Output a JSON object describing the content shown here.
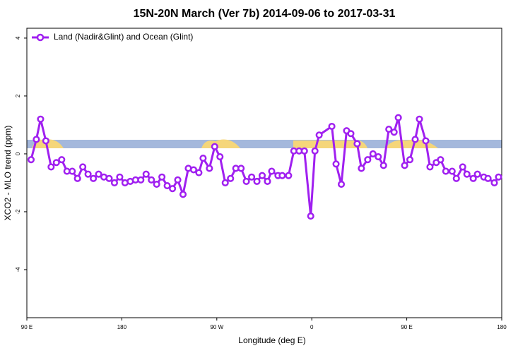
{
  "chart_data": {
    "type": "line",
    "title": "15N-20N March (Ver 7b)   2014-09-06 to 2017-03-31",
    "x_label": "Longitude (deg E)",
    "y_label": "XCO2 - MLO trend (ppm)",
    "x": [
      94,
      99,
      103,
      108,
      113,
      118,
      123,
      128,
      133,
      138,
      143,
      148,
      153,
      158,
      163,
      168,
      173,
      178,
      183,
      188,
      193,
      198,
      203,
      208,
      213,
      218,
      223,
      228,
      233,
      238,
      243,
      248,
      253,
      257,
      263,
      268,
      273,
      278,
      283,
      288,
      293,
      298,
      303,
      308,
      313,
      318,
      322,
      328,
      332,
      338,
      343,
      348,
      353,
      359,
      363,
      367,
      379,
      383,
      388,
      393,
      397,
      403,
      407,
      413,
      418,
      423,
      428,
      433,
      438,
      442,
      448,
      453,
      458,
      462,
      468,
      472,
      478,
      482,
      487,
      493,
      497,
      503,
      507,
      513,
      517,
      523,
      527,
      533,
      537
    ],
    "series": [
      {
        "name": "Land (Nadir&Glint) and Ocean (Glint)",
        "color": "#a020f0",
        "values": [
          -0.2,
          0.5,
          1.2,
          0.45,
          -0.45,
          -0.3,
          -0.2,
          -0.6,
          -0.6,
          -0.85,
          -0.45,
          -0.7,
          -0.85,
          -0.7,
          -0.8,
          -0.85,
          -1.0,
          -0.8,
          -1.0,
          -0.95,
          -0.9,
          -0.9,
          -0.7,
          -0.9,
          -1.05,
          -0.8,
          -1.1,
          -1.2,
          -0.9,
          -1.4,
          -0.5,
          -0.55,
          -0.65,
          -0.15,
          -0.5,
          0.25,
          -0.1,
          -1.0,
          -0.85,
          -0.5,
          -0.5,
          -0.95,
          -0.8,
          -0.95,
          -0.75,
          -0.95,
          -0.6,
          -0.75,
          -0.75,
          -0.75,
          0.1,
          0.1,
          0.1,
          -2.15,
          0.1,
          0.65,
          0.95,
          -0.35,
          -1.05,
          0.8,
          0.7,
          0.35,
          -0.5,
          -0.2,
          0,
          -0.1,
          -0.4,
          0.85,
          0.75,
          1.25,
          -0.4,
          -0.2,
          0.5,
          1.2,
          0.45,
          -0.45,
          -0.3,
          -0.2,
          -0.6,
          -0.6,
          -0.85,
          -0.45,
          -0.7,
          -0.85,
          -0.7,
          -0.8,
          -0.85,
          -1.0,
          -0.8
        ]
      }
    ],
    "xlim": [
      90,
      540
    ],
    "xticks": [
      {
        "value": 90,
        "label": "90 E"
      },
      {
        "value": 180,
        "label": "180"
      },
      {
        "value": 270,
        "label": "90 W"
      },
      {
        "value": 360,
        "label": "0"
      },
      {
        "value": 450,
        "label": "90 E"
      },
      {
        "value": 540,
        "label": "180"
      }
    ],
    "ylim": [
      -5.66,
      4.34
    ],
    "yticks": [
      -4,
      -2,
      0,
      2,
      4
    ],
    "legend": "top-left"
  }
}
